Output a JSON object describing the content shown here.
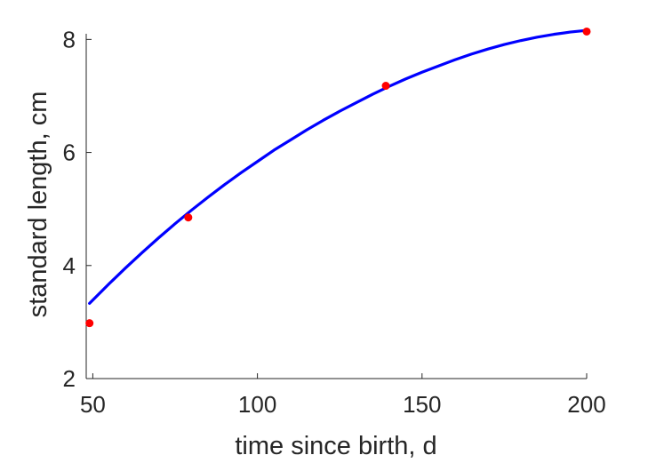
{
  "chart_data": {
    "type": "scatter",
    "title": "",
    "xlabel": "time since birth, d",
    "ylabel": "standard length, cm",
    "xlim": [
      48,
      200
    ],
    "ylim": [
      2,
      8.1
    ],
    "xticks": [
      50,
      100,
      150,
      200
    ],
    "yticks": [
      2,
      4,
      6,
      8
    ],
    "grid": false,
    "legend": "none",
    "series": [
      {
        "kind": "points",
        "color": "#ff0000",
        "x": [
          49,
          79,
          139,
          200
        ],
        "y": [
          2.98,
          4.85,
          7.18,
          8.14
        ]
      },
      {
        "kind": "line",
        "color": "#0000ff",
        "x": [
          49,
          55,
          60,
          65,
          70,
          75,
          80,
          85,
          90,
          95,
          100,
          105,
          110,
          115,
          120,
          125,
          130,
          135,
          140,
          145,
          150,
          155,
          160,
          165,
          170,
          175,
          180,
          185,
          190,
          195,
          200
        ],
        "y": [
          3.33,
          3.68,
          3.96,
          4.23,
          4.49,
          4.74,
          4.98,
          5.21,
          5.43,
          5.64,
          5.84,
          6.04,
          6.22,
          6.4,
          6.57,
          6.73,
          6.88,
          7.03,
          7.17,
          7.3,
          7.42,
          7.53,
          7.64,
          7.74,
          7.83,
          7.91,
          7.98,
          8.04,
          8.09,
          8.13,
          8.16
        ]
      }
    ]
  }
}
